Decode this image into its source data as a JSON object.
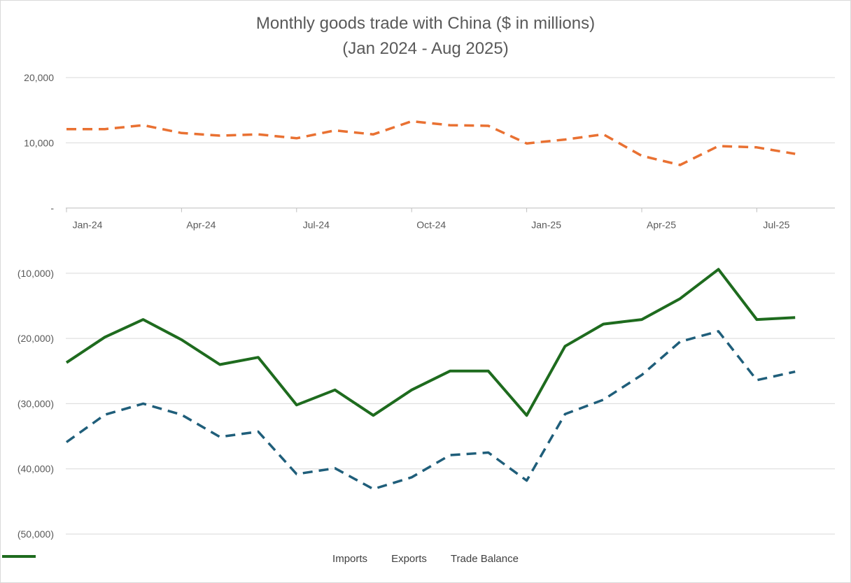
{
  "chart_data": {
    "type": "line",
    "title": "Monthly goods trade with China ($ in millions)",
    "subtitle": "(Jan 2024 - Aug 2025)",
    "xlabel": "",
    "ylabel": "",
    "ylim": [
      -50000,
      20000
    ],
    "y_ticks": [
      20000,
      10000,
      0,
      -10000,
      -20000,
      -30000,
      -40000,
      -50000
    ],
    "y_tick_labels": [
      "20,000",
      "10,000",
      "-",
      "(10,000)",
      "(20,000)",
      "(30,000)",
      "(40,000)",
      "(50,000)"
    ],
    "x": [
      "Jan-24",
      "Feb-24",
      "Mar-24",
      "Apr-24",
      "May-24",
      "Jun-24",
      "Jul-24",
      "Aug-24",
      "Sep-24",
      "Oct-24",
      "Nov-24",
      "Dec-24",
      "Jan-25",
      "Feb-25",
      "Mar-25",
      "Apr-25",
      "May-25",
      "Jun-25",
      "Jul-25",
      "Aug-25"
    ],
    "x_tick_labels": [
      "Jan-24",
      "Apr-24",
      "Jul-24",
      "Oct-24",
      "Jan-25",
      "Apr-25",
      "Jul-25"
    ],
    "x_tick_indices": [
      0,
      3,
      6,
      9,
      12,
      15,
      18
    ],
    "grid": true,
    "legend_position": "bottom",
    "series": [
      {
        "name": "Imports",
        "color": "#1f5e7a",
        "style": "dashed",
        "values": [
          -35900,
          -31700,
          -30000,
          -31700,
          -35100,
          -34300,
          -40800,
          -39900,
          -43100,
          -41300,
          -37900,
          -37500,
          -41800,
          -31600,
          -29400,
          -25600,
          -20500,
          -18900,
          -26400,
          -25100
        ]
      },
      {
        "name": "Exports",
        "color": "#e97132",
        "style": "dashed",
        "values": [
          12100,
          12100,
          12700,
          11500,
          11100,
          11300,
          10700,
          11900,
          11300,
          13300,
          12700,
          12600,
          9900,
          10500,
          11300,
          8000,
          6600,
          9500,
          9300,
          8300
        ]
      },
      {
        "name": "Trade Balance",
        "color": "#1e6b1e",
        "style": "solid",
        "values": [
          -23700,
          -19800,
          -17100,
          -20200,
          -24000,
          -22900,
          -30200,
          -27900,
          -31800,
          -27900,
          -25000,
          -25000,
          -31800,
          -21200,
          -17800,
          -17100,
          -13900,
          -9400,
          -17100,
          -16800
        ]
      }
    ]
  }
}
